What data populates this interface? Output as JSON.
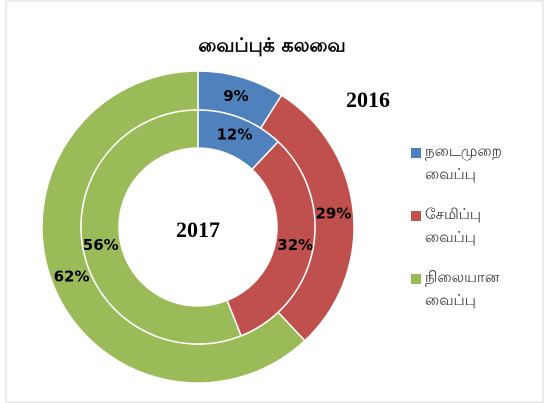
{
  "chart_data": {
    "type": "donut",
    "title": "வைப்புக் கலவை",
    "categories": [
      "நடைமுறை வைப்பு",
      "சேமிப்பு வைப்பு",
      "நிலையான வைப்பு"
    ],
    "colors": [
      "#4f81bd",
      "#c0504d",
      "#9bbb59"
    ],
    "series": [
      {
        "name": "2016",
        "values": [
          9,
          29,
          62
        ],
        "value_labels": [
          "9%",
          "29%",
          "62%"
        ]
      },
      {
        "name": "2017",
        "values": [
          12,
          32,
          56
        ],
        "value_labels": [
          "12%",
          "32%",
          "56%"
        ]
      }
    ]
  }
}
